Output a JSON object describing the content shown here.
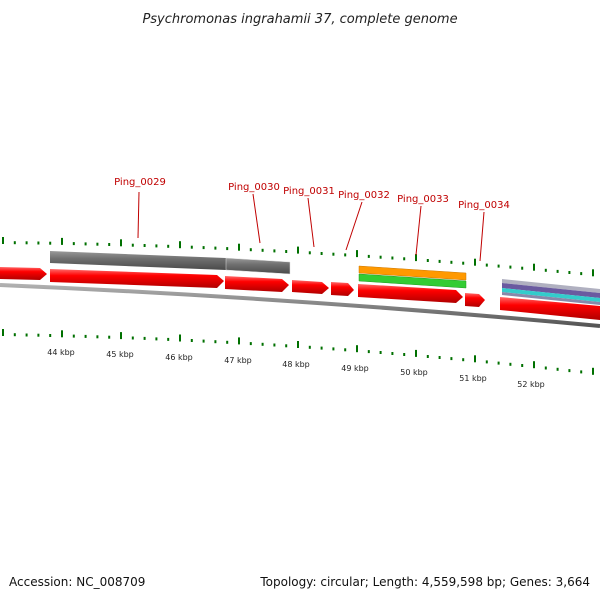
{
  "title": "Psychromonas ingrahamii 37, complete genome",
  "footer": {
    "accession": "Accession: NC_008709",
    "summary": "Topology: circular; Length: 4,559,598 bp; Genes: 3,664"
  },
  "gene_labels": [
    "Ping_0029",
    "Ping_0030",
    "Ping_0031",
    "Ping_0032",
    "Ping_0033",
    "Ping_0034"
  ],
  "scale_labels": [
    "44 kbp",
    "45 kbp",
    "46 kbp",
    "47 kbp",
    "48 kbp",
    "49 kbp",
    "50 kbp",
    "51 kbp",
    "52 kbp"
  ],
  "colors": {
    "gene": "#ff0000",
    "gene_dark": "#b40000",
    "homolog_bar": "#707070",
    "orange_bar": "#ff9900",
    "green_bar": "#33cc33",
    "purple_bar": "#6a5aa0",
    "cyan_bar": "#33cccc",
    "backbone": "#808080",
    "tick": "#007000",
    "label": "#c00000"
  }
}
